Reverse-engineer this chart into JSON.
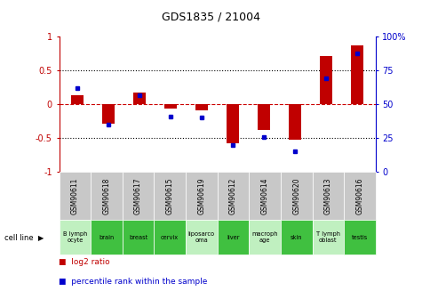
{
  "title": "GDS1835 / 21004",
  "gsm_ids": [
    "GSM90611",
    "GSM90618",
    "GSM90617",
    "GSM90615",
    "GSM90619",
    "GSM90612",
    "GSM90614",
    "GSM90620",
    "GSM90613",
    "GSM90616"
  ],
  "cell_lines": [
    "B lymph\nocyte",
    "brain",
    "breast",
    "cervix",
    "liposarco\noma",
    "liver",
    "macroph\nage",
    "skin",
    "T lymph\noblast",
    "testis"
  ],
  "log2_ratio": [
    0.13,
    -0.28,
    0.18,
    -0.06,
    -0.09,
    -0.57,
    -0.38,
    -0.52,
    0.72,
    0.87
  ],
  "percentile_rank_raw": [
    62,
    35,
    57,
    41,
    40,
    20,
    26,
    15,
    69,
    88
  ],
  "bar_color_red": "#c00000",
  "bar_color_blue": "#0000cc",
  "dashed_line_color": "#cc0000",
  "bg_color": "#ffffff",
  "plot_bg": "#ffffff",
  "gsm_bg": "#c8c8c8",
  "cell_line_bg_light": "#c0f0c0",
  "cell_line_bg_dark": "#40c040",
  "cell_line_highlight": [
    false,
    true,
    true,
    true,
    false,
    true,
    false,
    true,
    false,
    true
  ],
  "ylim_left": [
    -1,
    1
  ],
  "ylim_right": [
    0,
    100
  ],
  "yticks_left": [
    -1,
    -0.5,
    0,
    0.5,
    1
  ],
  "yticks_right": [
    0,
    25,
    50,
    75,
    100
  ],
  "bar_width": 0.4,
  "legend_red_label": "log2 ratio",
  "legend_blue_label": "percentile rank within the sample"
}
